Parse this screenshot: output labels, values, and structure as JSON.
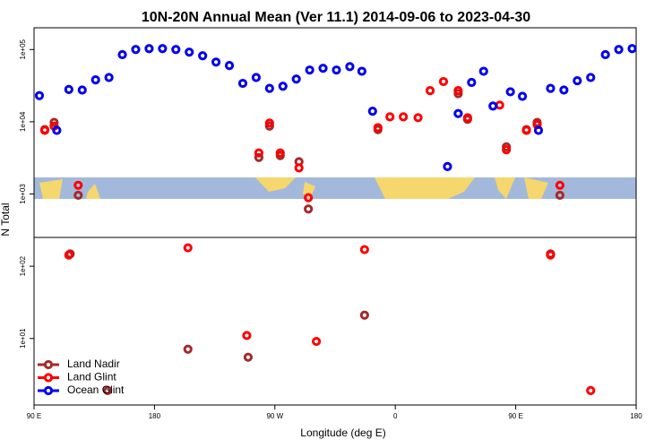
{
  "chart_data": {
    "type": "scatter",
    "title": "10N-20N Annual Mean (Ver 11.1)   2014-09-06 to 2023-04-30",
    "x_label": "Longitude (deg E)",
    "y_label": "N Total",
    "xlim": [
      90,
      540
    ],
    "ylim": [
      1.2,
      200000
    ],
    "y_log": true,
    "xticks": [
      {
        "value": 90,
        "label": "90 E"
      },
      {
        "value": 180,
        "label": "180"
      },
      {
        "value": 270,
        "label": "90 W"
      },
      {
        "value": 360,
        "label": "0"
      },
      {
        "value": 450,
        "label": "90 E"
      },
      {
        "value": 540,
        "label": "180"
      }
    ],
    "yticks": [
      {
        "value": 100000,
        "label": "1e+05"
      },
      {
        "value": 10000,
        "label": "1e+04"
      },
      {
        "value": 1000,
        "label": "1e+03"
      },
      {
        "value": 100,
        "label": "1e+02"
      },
      {
        "value": 10,
        "label": "1e+01"
      }
    ],
    "legend_position": "lower left",
    "series": [
      {
        "name": "Land Nadir",
        "color": "#a52a2a",
        "x": [
          98,
          105,
          123,
          117,
          205,
          250,
          258,
          266,
          274,
          288,
          295,
          337,
          347,
          407,
          414,
          443,
          458,
          466,
          476,
          483,
          145
        ],
        "values": [
          7800,
          9800,
          960,
          148,
          7.1,
          5.5,
          3200,
          8700,
          3400,
          2800,
          620,
          21,
          7800,
          24500,
          10800,
          4500,
          7800,
          9800,
          148,
          960,
          1.9
        ]
      },
      {
        "name": "Land Glint",
        "color": "#ff0000",
        "x": [
          98,
          105,
          123,
          116,
          205,
          258,
          266,
          274,
          288,
          295,
          249,
          301,
          337,
          347,
          356,
          366,
          377,
          386,
          396,
          407,
          414,
          438,
          443,
          458,
          466,
          476,
          483,
          506
        ],
        "values": [
          7600,
          8700,
          1320,
          143,
          180,
          3700,
          9600,
          3700,
          2300,
          890,
          11,
          9.1,
          170,
          8300,
          11700,
          11700,
          11400,
          27000,
          36000,
          27000,
          11400,
          17000,
          4100,
          7600,
          9100,
          143,
          1320,
          1.9
        ]
      },
      {
        "name": "Ocean Glint",
        "color": "#0000ee",
        "x": [
          94,
          107,
          116,
          126,
          136,
          146,
          156,
          166,
          176,
          186,
          196,
          206,
          216,
          226,
          236,
          246,
          256,
          266,
          276,
          286,
          296,
          306,
          316,
          326,
          335,
          343,
          399,
          407,
          417,
          426,
          433,
          446,
          455,
          467,
          476,
          486,
          496,
          506,
          517,
          527,
          537
        ],
        "values": [
          23000,
          7600,
          28000,
          27500,
          38000,
          41000,
          85000,
          100000,
          103000,
          103000,
          100000,
          92000,
          82000,
          67000,
          60000,
          34000,
          41000,
          29000,
          31000,
          39000,
          52000,
          55000,
          52000,
          58000,
          50000,
          14000,
          2400,
          13000,
          35000,
          50000,
          16500,
          26000,
          22500,
          7600,
          29000,
          27500,
          37000,
          41000,
          85000,
          100000,
          103000
        ]
      }
    ]
  }
}
